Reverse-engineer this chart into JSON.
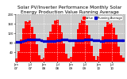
{
  "title": "Solar PV/Inverter Performance Monthly Solar Energy Production Value Running Average",
  "bar_color": "#ff0000",
  "avg_color": "#0000cc",
  "bg_color": "#ffffff",
  "plot_bg": "#cccccc",
  "grid_color": "#ffffff",
  "values": [
    12,
    45,
    95,
    140,
    170,
    168,
    172,
    148,
    118,
    72,
    28,
    10,
    18,
    58,
    102,
    128,
    158,
    172,
    178,
    152,
    122,
    78,
    32,
    14,
    20,
    62,
    92,
    138,
    162,
    178,
    182,
    155,
    115,
    68,
    25,
    8,
    22,
    55,
    108,
    148,
    168,
    160,
    165,
    142,
    112,
    65,
    28,
    18
  ],
  "running_avg": [
    85,
    82,
    84,
    87,
    90,
    92,
    94,
    95,
    95,
    94,
    92,
    90,
    88,
    87,
    86,
    86,
    87,
    88,
    90,
    91,
    92,
    92,
    92,
    91,
    90,
    90,
    89,
    89,
    90,
    91,
    92,
    93,
    93,
    92,
    91,
    90,
    89,
    88,
    88,
    89,
    90,
    90,
    91,
    91,
    91,
    90,
    90,
    89
  ],
  "ylim": [
    0,
    200
  ],
  "yticks": [
    40,
    80,
    120,
    160,
    200
  ],
  "ytick_labels": [
    "40",
    "80",
    "120",
    "160",
    "200"
  ],
  "n_bars": 48,
  "title_fontsize": 4.2,
  "tick_fontsize": 2.8,
  "legend_fontsize": 2.6
}
